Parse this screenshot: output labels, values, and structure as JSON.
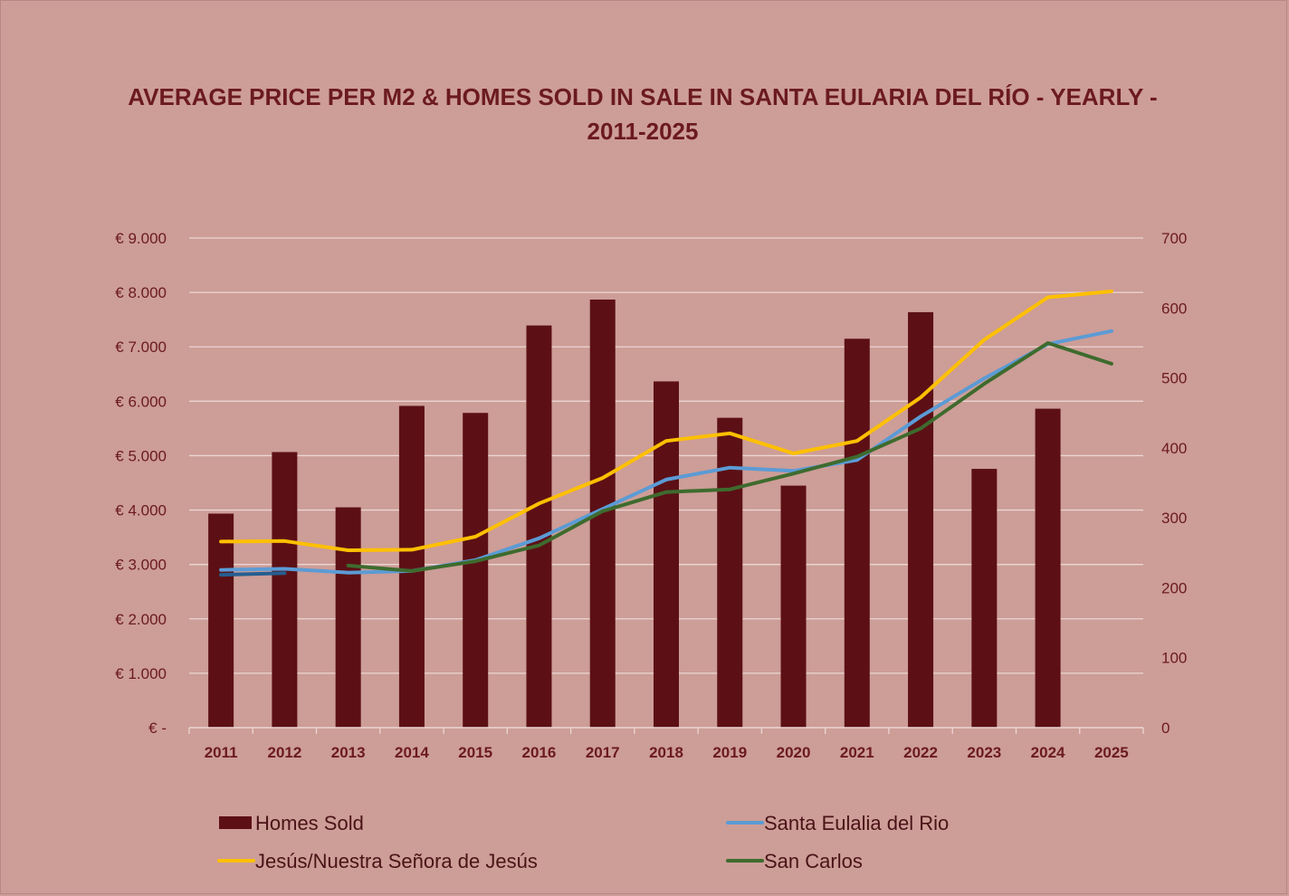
{
  "chart_data": {
    "type": "bar",
    "title": "AVERAGE PRICE PER M2 & HOMES SOLD IN SALE IN SANTA EULARIA DEL RÍO - YEARLY - 2011-2025",
    "categories": [
      "2011",
      "2012",
      "2013",
      "2014",
      "2015",
      "2016",
      "2017",
      "2018",
      "2019",
      "2020",
      "2021",
      "2022",
      "2023",
      "2024",
      "2025"
    ],
    "y_left": {
      "ticks": [
        "€ 9.000",
        "€ 8.000",
        "€ 7.000",
        "€ 6.000",
        "€ 5.000",
        "€ 4.000",
        "€ 3.000",
        "€ 2.000",
        "€ 1.000",
        "€ -"
      ],
      "ylim": [
        0,
        9000
      ]
    },
    "y_right": {
      "ticks": [
        "700",
        "600",
        "500",
        "400",
        "300",
        "200",
        "100",
        "0"
      ],
      "ylim": [
        0,
        700
      ]
    },
    "grid": true,
    "legend_position": "bottom",
    "series": [
      {
        "name": "Homes Sold",
        "kind": "bar",
        "axis": "right",
        "color": "#5c1015",
        "values": [
          306,
          394,
          315,
          460,
          450,
          575,
          612,
          495,
          443,
          346,
          556,
          594,
          370,
          456,
          null
        ]
      },
      {
        "name": "Santa Eulalia del Rio",
        "kind": "line",
        "axis": "left",
        "color": "#5b9bd5",
        "values": [
          2900,
          2920,
          2850,
          2880,
          3080,
          3480,
          4020,
          4560,
          4780,
          4720,
          4920,
          5720,
          6420,
          7050,
          7290
        ]
      },
      {
        "name": "Jesús/Nuestra Señora de Jesús",
        "kind": "line",
        "axis": "left",
        "color": "#ffc000",
        "values": [
          3420,
          3430,
          3260,
          3270,
          3510,
          4120,
          4590,
          5270,
          5410,
          5040,
          5270,
          6070,
          7130,
          7910,
          8020
        ]
      },
      {
        "name": "San Carlos",
        "kind": "line",
        "axis": "left",
        "color": "#3e6b2e",
        "values": [
          null,
          null,
          2980,
          2880,
          3060,
          3350,
          3980,
          4330,
          4380,
          4670,
          4980,
          5500,
          6320,
          7070,
          6690
        ]
      },
      {
        "name": "",
        "kind": "line",
        "axis": "left",
        "color": "#255e91",
        "legend": false,
        "values": [
          2810,
          2840,
          null,
          null,
          null,
          null,
          null,
          null,
          null,
          null,
          null,
          null,
          null,
          null,
          null
        ]
      }
    ]
  }
}
